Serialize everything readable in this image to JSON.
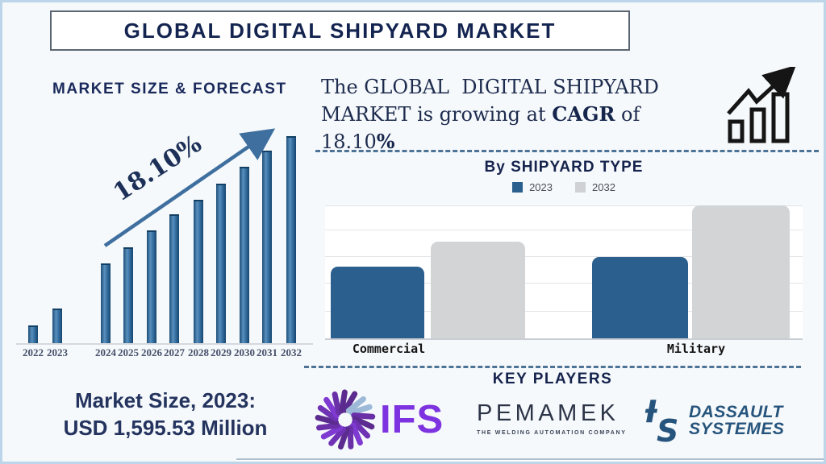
{
  "title_banner": "GLOBAL DIGITAL SHIPYARD MARKET",
  "forecast": {
    "heading": "MARKET SIZE & FORECAST",
    "growth_label": "18.10%",
    "years": [
      "2022",
      "2023",
      "2024",
      "2025",
      "2026",
      "2027",
      "2028",
      "2029",
      "2030",
      "2031",
      "2032"
    ]
  },
  "headline": {
    "part1": "The GLOBAL  DIGITAL SHIPYARD MARKET is growing at ",
    "bold1": "CAGR",
    "part2": " of ",
    "part3": "18.10",
    "bold2": "%"
  },
  "shipyard": {
    "heading": "By SHIPYARD TYPE",
    "legend": [
      {
        "label": "2023",
        "color": "#2b5f8e"
      },
      {
        "label": "2032",
        "color": "#cfd1d4"
      }
    ],
    "categories": [
      "Commercial",
      "Military"
    ]
  },
  "market_size": {
    "line1": "Market Size, 2023:",
    "line2": "USD 1,595.53 Million"
  },
  "key_players": {
    "heading": "KEY PLAYERS",
    "ifs_text": "IFS",
    "pemamek_text": "PEMAMEK",
    "pemamek_tagline": "THE WELDING AUTOMATION COMPANY",
    "dassault_line1": "DASSAULT",
    "dassault_line2": "SYSTEMES"
  },
  "colors": {
    "navy_text": "#15234d",
    "bar_blue": "#2b5f8e",
    "bar_gray": "#d2d4d6",
    "forecast_bar_blue": "#2e6da4",
    "arrow_blue": "#3e6f9f",
    "dash_blue": "#4d7396",
    "ifs_purple": "#7d33df",
    "dassault_blue": "#26547c",
    "background": "#f6f9fb"
  },
  "chart_data": [
    {
      "type": "bar",
      "title": "MARKET SIZE & FORECAST",
      "categories": [
        "2022",
        "2023",
        "2024",
        "2025",
        "2026",
        "2027",
        "2028",
        "2029",
        "2030",
        "2031",
        "2032"
      ],
      "values_relative_pct": [
        8,
        16,
        38,
        46,
        54,
        62,
        69,
        77,
        85,
        93,
        100
      ],
      "known_point": {
        "year": "2023",
        "value_usd_million": 1595.53
      },
      "cagr_pct": 18.1,
      "annotations": [
        "18.10%"
      ],
      "xlabel": "",
      "ylabel": "",
      "grid": false,
      "legend_position": "none"
    },
    {
      "type": "bar",
      "title": "By SHIPYARD TYPE",
      "categories": [
        "Commercial",
        "Military"
      ],
      "series": [
        {
          "name": "2023",
          "values_relative_pct": [
            54,
            61
          ],
          "color": "#2b5f8e"
        },
        {
          "name": "2032",
          "values_relative_pct": [
            73,
            100
          ],
          "color": "#d2d4d6"
        }
      ],
      "xlabel": "",
      "ylabel": "",
      "grid": "horizontal",
      "legend_position": "top"
    }
  ]
}
